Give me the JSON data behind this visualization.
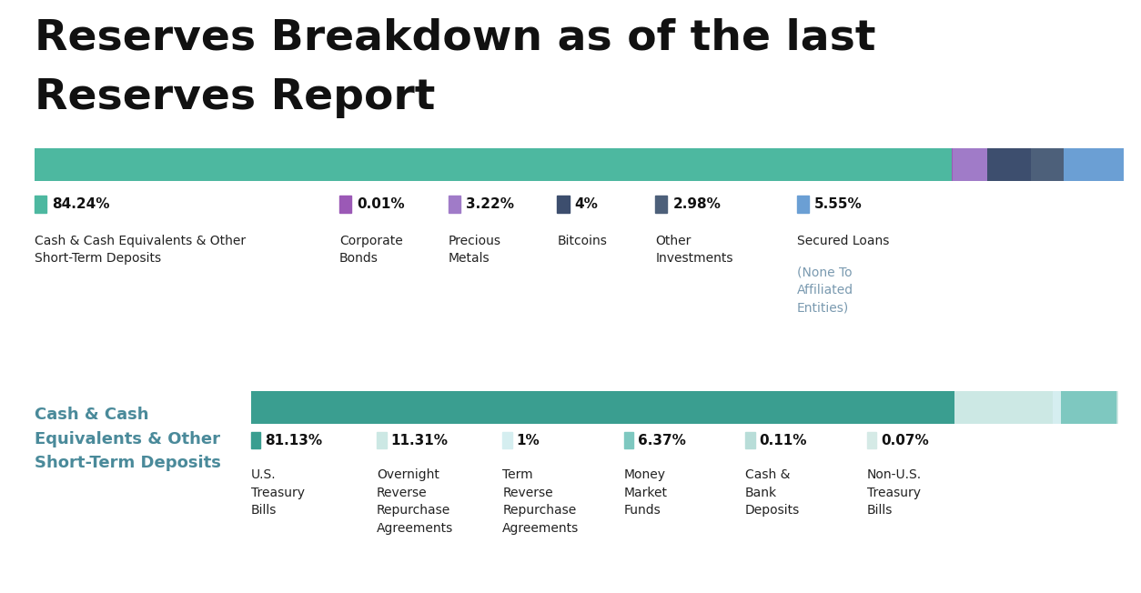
{
  "title_line1": "Reserves Breakdown as of the last",
  "title_line2": "Reserves Report",
  "title_fontsize": 34,
  "title_fontweight": "bold",
  "background_color": "#ffffff",
  "bar1_values": [
    84.24,
    0.01,
    3.22,
    4.0,
    2.98,
    5.55
  ],
  "bar1_colors": [
    "#4db8a0",
    "#9b59b6",
    "#a07bc8",
    "#3d4e6e",
    "#4d607a",
    "#6b9fd4"
  ],
  "bar1_labels": [
    "84.24%",
    "0.01%",
    "3.22%",
    "4%",
    "2.98%",
    "5.55%"
  ],
  "bar1_sublabels_main": [
    "Cash & Cash Equivalents & Other\nShort-Term Deposits",
    "Corporate\nBonds",
    "Precious\nMetals",
    "Bitcoins",
    "Other\nInvestments",
    "Secured Loans"
  ],
  "bar1_sublabels_sub": [
    "",
    "",
    "",
    "",
    "",
    "(None To\nAffiliated\nEntities)"
  ],
  "bar1_sublabels_sub_color": "#7a9ab0",
  "bar2_values": [
    81.13,
    11.31,
    1.0,
    6.37,
    0.11,
    0.07
  ],
  "bar2_colors": [
    "#3a9e90",
    "#cce8e4",
    "#d5eef0",
    "#7ec8c0",
    "#b8ddd8",
    "#d5eae6"
  ],
  "bar2_labels": [
    "81.13%",
    "11.31%",
    "1%",
    "6.37%",
    "0.11%",
    "0.07%"
  ],
  "bar2_sublabels": [
    "U.S.\nTreasury\nBills",
    "Overnight\nReverse\nRepurchase\nAgreements",
    "Term\nReverse\nRepurchase\nAgreements",
    "Money\nMarket\nFunds",
    "Cash &\nBank\nDeposits",
    "Non-U.S.\nTreasury\nBills"
  ],
  "bar2_title": "Cash & Cash\nEquivalents & Other\nShort-Term Deposits",
  "bar2_title_color": "#4a8a9a",
  "label_fontsize": 11,
  "sublabel_fontsize": 10,
  "sublabel_color": "#222222",
  "pct_fontweight": "bold"
}
